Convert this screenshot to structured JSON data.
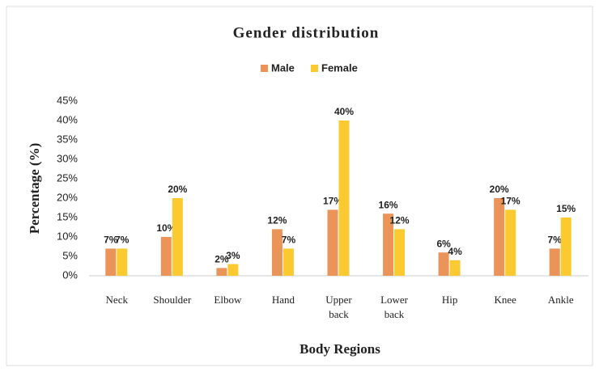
{
  "chart_data": {
    "type": "bar",
    "title": "Gender distribution",
    "x_label": "Body Regions",
    "y_label": "Percentage (%)",
    "categories": [
      "Neck",
      "Shoulder",
      "Elbow",
      "Hand",
      "Upper back",
      "Lower back",
      "Hip",
      "Knee",
      "Ankle"
    ],
    "series": [
      {
        "name": "Male",
        "color": "#ea9459",
        "values": [
          7,
          10,
          2,
          12,
          17,
          16,
          6,
          20,
          7
        ],
        "value_labels": [
          "7%",
          "10%",
          "2%",
          "12%",
          "17%",
          "16%",
          "6%",
          "20%",
          "7%"
        ]
      },
      {
        "name": "Female",
        "color": "#fbc930",
        "values": [
          7,
          20,
          3,
          7,
          40,
          12,
          4,
          17,
          15
        ],
        "value_labels": [
          "7%",
          "20%",
          "3%",
          "7%",
          "40%",
          "12%",
          "4%",
          "17%",
          "15%"
        ]
      }
    ],
    "ylim": [
      0,
      45
    ],
    "yticks": [
      {
        "value": 0,
        "label": "0%"
      },
      {
        "value": 5,
        "label": "5%"
      },
      {
        "value": 10,
        "label": "10%"
      },
      {
        "value": 15,
        "label": "15%"
      },
      {
        "value": 20,
        "label": "20%"
      },
      {
        "value": 25,
        "label": "25%"
      },
      {
        "value": 30,
        "label": "30%"
      },
      {
        "value": 35,
        "label": "35%"
      },
      {
        "value": 40,
        "label": "40%"
      },
      {
        "value": 45,
        "label": "45%"
      }
    ],
    "grid": false,
    "legend": "top"
  }
}
